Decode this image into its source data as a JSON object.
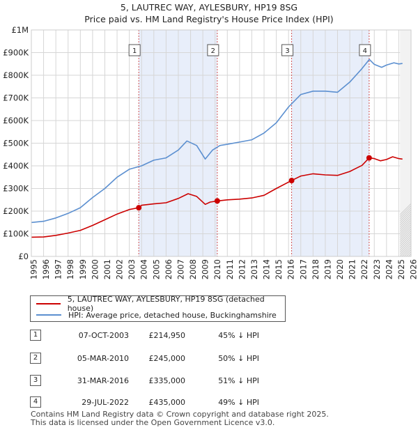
{
  "title": {
    "line1": "5, LAUTREC WAY, AYLESBURY, HP19 8SG",
    "line2": "Price paid vs. HM Land Registry's House Price Index (HPI)"
  },
  "legend": {
    "red_label": "5, LAUTREC WAY, AYLESBURY, HP19 8SG (detached house)",
    "blue_label": "HPI: Average price, detached house, Buckinghamshire"
  },
  "colors": {
    "price_line": "#cc0000",
    "hpi_line": "#5b8fd0",
    "shade": "#e8eefa",
    "grid": "#d6d6d6",
    "marker_line": "#d05050"
  },
  "sales": [
    {
      "num": "1",
      "date": "07-OCT-2003",
      "price": "£214,950",
      "hpi": "45% ↓ HPI"
    },
    {
      "num": "2",
      "date": "05-MAR-2010",
      "price": "£245,000",
      "hpi": "50% ↓ HPI"
    },
    {
      "num": "3",
      "date": "31-MAR-2016",
      "price": "£335,000",
      "hpi": "51% ↓ HPI"
    },
    {
      "num": "4",
      "date": "29-JUL-2022",
      "price": "£435,000",
      "hpi": "49% ↓ HPI"
    }
  ],
  "footer": {
    "line1": "Contains HM Land Registry data © Crown copyright and database right 2025.",
    "line2": "This data is licensed under the Open Government Licence v3.0."
  },
  "chart_data": {
    "type": "line",
    "title": "5, LAUTREC WAY, AYLESBURY, HP19 8SG",
    "subtitle": "Price paid vs. HM Land Registry's House Price Index (HPI)",
    "xlim": [
      1995,
      2026
    ],
    "ylim": [
      0,
      1000000
    ],
    "x_ticks": [
      1995,
      1996,
      1997,
      1998,
      1999,
      2000,
      2001,
      2002,
      2003,
      2004,
      2005,
      2006,
      2007,
      2008,
      2009,
      2010,
      2011,
      2012,
      2013,
      2014,
      2015,
      2016,
      2017,
      2018,
      2019,
      2020,
      2021,
      2022,
      2023,
      2024,
      2025,
      2026
    ],
    "y_ticks": [
      0,
      100000,
      200000,
      300000,
      400000,
      500000,
      600000,
      700000,
      800000,
      900000,
      1000000
    ],
    "y_tick_labels": [
      "£0",
      "£100K",
      "£200K",
      "£300K",
      "£400K",
      "£500K",
      "£600K",
      "£700K",
      "£800K",
      "£900K",
      "£1M"
    ],
    "shaded_ranges": [
      [
        2003.77,
        2010.18
      ],
      [
        2016.25,
        2022.58
      ]
    ],
    "hatched_from": 2025.1,
    "grid": true,
    "series": [
      {
        "name": "5, LAUTREC WAY, AYLESBURY, HP19 8SG (detached house)",
        "color": "#cc0000",
        "points": [
          [
            1995,
            85000
          ],
          [
            1996,
            86000
          ],
          [
            1997,
            93000
          ],
          [
            1998,
            103000
          ],
          [
            1999,
            115000
          ],
          [
            2000,
            137000
          ],
          [
            2001,
            162000
          ],
          [
            2002,
            187000
          ],
          [
            2003,
            207000
          ],
          [
            2003.77,
            214950
          ],
          [
            2004,
            226000
          ],
          [
            2005,
            232000
          ],
          [
            2006,
            237000
          ],
          [
            2007,
            256000
          ],
          [
            2007.8,
            277000
          ],
          [
            2008.5,
            265000
          ],
          [
            2009.2,
            230000
          ],
          [
            2009.6,
            240000
          ],
          [
            2010.18,
            245000
          ],
          [
            2011,
            250000
          ],
          [
            2012,
            253000
          ],
          [
            2013,
            258000
          ],
          [
            2014,
            270000
          ],
          [
            2015,
            300000
          ],
          [
            2016.25,
            335000
          ],
          [
            2017,
            355000
          ],
          [
            2018,
            365000
          ],
          [
            2019,
            360000
          ],
          [
            2020,
            358000
          ],
          [
            2021,
            375000
          ],
          [
            2022,
            402000
          ],
          [
            2022.58,
            435000
          ],
          [
            2023,
            432000
          ],
          [
            2023.5,
            422000
          ],
          [
            2024,
            428000
          ],
          [
            2024.5,
            440000
          ],
          [
            2025,
            432000
          ],
          [
            2025.3,
            430000
          ]
        ]
      },
      {
        "name": "HPI: Average price, detached house, Buckinghamshire",
        "color": "#5b8fd0",
        "points": [
          [
            1995,
            150000
          ],
          [
            1996,
            155000
          ],
          [
            1997,
            170000
          ],
          [
            1998,
            190000
          ],
          [
            1999,
            215000
          ],
          [
            2000,
            260000
          ],
          [
            2001,
            300000
          ],
          [
            2002,
            350000
          ],
          [
            2003,
            385000
          ],
          [
            2004,
            400000
          ],
          [
            2005,
            425000
          ],
          [
            2006,
            435000
          ],
          [
            2007,
            470000
          ],
          [
            2007.7,
            510000
          ],
          [
            2008.5,
            490000
          ],
          [
            2009.2,
            430000
          ],
          [
            2009.8,
            470000
          ],
          [
            2010.4,
            490000
          ],
          [
            2011,
            495000
          ],
          [
            2012,
            505000
          ],
          [
            2013,
            515000
          ],
          [
            2014,
            545000
          ],
          [
            2015,
            590000
          ],
          [
            2016,
            660000
          ],
          [
            2017,
            715000
          ],
          [
            2018,
            730000
          ],
          [
            2019,
            730000
          ],
          [
            2020,
            725000
          ],
          [
            2021,
            770000
          ],
          [
            2022,
            830000
          ],
          [
            2022.6,
            870000
          ],
          [
            2023,
            848000
          ],
          [
            2023.6,
            835000
          ],
          [
            2024,
            845000
          ],
          [
            2024.6,
            855000
          ],
          [
            2025,
            850000
          ],
          [
            2025.3,
            852000
          ]
        ]
      }
    ],
    "markers": [
      {
        "label": "1",
        "x": 2003.77,
        "y": 214950
      },
      {
        "label": "2",
        "x": 2010.18,
        "y": 245000
      },
      {
        "label": "3",
        "x": 2016.25,
        "y": 335000
      },
      {
        "label": "4",
        "x": 2022.58,
        "y": 435000
      }
    ]
  }
}
